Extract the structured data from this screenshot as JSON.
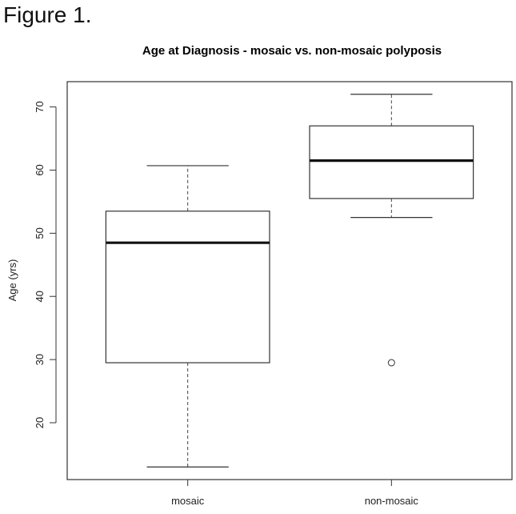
{
  "figure_label": "Figure 1.",
  "chart_data": {
    "type": "boxplot",
    "title": "Age at Diagnosis - mosaic vs. non-mosaic polyposis",
    "xlabel": "",
    "ylabel": "Age (yrs)",
    "ylim": [
      11,
      74
    ],
    "yticks": [
      20,
      30,
      40,
      50,
      60,
      70
    ],
    "grid": false,
    "categories": [
      "mosaic",
      "non-mosaic"
    ],
    "boxes": [
      {
        "category": "mosaic",
        "whisker_low": 13,
        "q1": 29.5,
        "median": 48.5,
        "q3": 53.5,
        "whisker_high": 60.7,
        "outliers": []
      },
      {
        "category": "non-mosaic",
        "whisker_low": 52.5,
        "q1": 55.5,
        "median": 61.5,
        "q3": 67,
        "whisker_high": 72,
        "outliers": [
          29.5
        ]
      }
    ]
  }
}
